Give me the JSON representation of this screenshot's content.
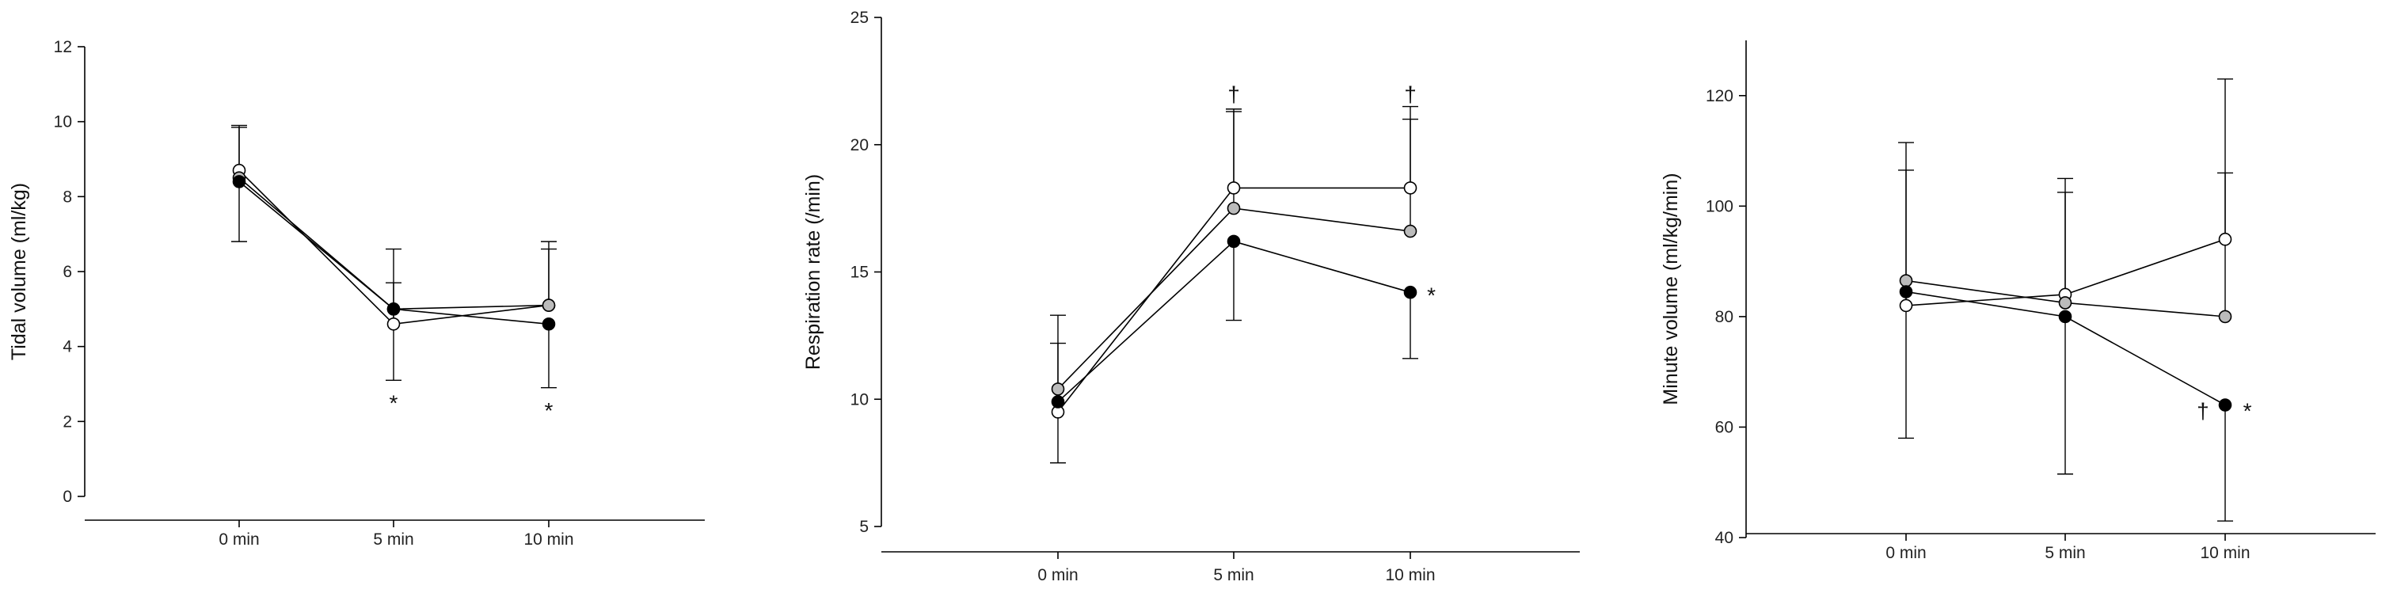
{
  "colors": {
    "open": "#ffffff",
    "gray": "#bbbbbb",
    "filled": "#000000",
    "line": "#000000"
  },
  "chart_data": [
    {
      "type": "line",
      "title": "",
      "xlabel": "",
      "ylabel": "Tidal volume (ml/kg)",
      "categories": [
        "0 min",
        "5 min",
        "10 min"
      ],
      "ylim": [
        0,
        12
      ],
      "yticks": [
        0,
        2,
        4,
        6,
        8,
        10,
        12
      ],
      "series": [
        {
          "marker": "open",
          "values": [
            8.7,
            4.6,
            5.1
          ],
          "err_high": [
            9.9,
            5.7,
            6.6
          ],
          "err_low": [
            null,
            null,
            null
          ]
        },
        {
          "marker": "gray",
          "values": [
            8.5,
            5.0,
            5.1
          ],
          "err_high": [
            9.85,
            6.6,
            6.8
          ],
          "err_low": [
            null,
            null,
            null
          ]
        },
        {
          "marker": "filled",
          "values": [
            8.4,
            5.0,
            4.6
          ],
          "err_high": [
            null,
            null,
            null
          ],
          "err_low": [
            6.8,
            3.1,
            2.9
          ]
        }
      ],
      "annotations": [
        {
          "category": "5 min",
          "y": 2.5,
          "text": "*"
        },
        {
          "category": "10 min",
          "y": 2.3,
          "text": "*"
        }
      ]
    },
    {
      "type": "line",
      "title": "",
      "xlabel": "",
      "ylabel": "Respiration rate (/min)",
      "categories": [
        "0 min",
        "5 min",
        "10 min"
      ],
      "ylim": [
        5,
        25
      ],
      "yticks": [
        5,
        10,
        15,
        20,
        25
      ],
      "series": [
        {
          "marker": "open",
          "values": [
            9.5,
            18.3,
            18.3
          ],
          "err_high": [
            12.2,
            21.4,
            21.5
          ],
          "err_low": [
            null,
            null,
            null
          ]
        },
        {
          "marker": "gray",
          "values": [
            10.4,
            17.5,
            16.6
          ],
          "err_high": [
            13.3,
            21.3,
            21.0
          ],
          "err_low": [
            null,
            null,
            null
          ]
        },
        {
          "marker": "filled",
          "values": [
            9.9,
            16.2,
            14.2
          ],
          "err_high": [
            null,
            null,
            null
          ],
          "err_low": [
            7.5,
            13.1,
            11.6
          ]
        }
      ],
      "annotations": [
        {
          "category": "5 min",
          "y": 22.0,
          "text": "†"
        },
        {
          "category": "10 min",
          "y": 22.0,
          "text": "†"
        },
        {
          "category": "10 min",
          "y": 14.1,
          "dx": 0.12,
          "text": "*"
        }
      ]
    },
    {
      "type": "line",
      "title": "",
      "xlabel": "",
      "ylabel": "Minute volume (ml/kg/min)",
      "categories": [
        "0 min",
        "5 min",
        "10 min"
      ],
      "ylim": [
        40,
        130
      ],
      "yticks": [
        40,
        60,
        80,
        100,
        120
      ],
      "series": [
        {
          "marker": "open",
          "values": [
            82,
            84,
            94
          ],
          "err_high": [
            111.5,
            105,
            123
          ],
          "err_low": [
            null,
            null,
            null
          ]
        },
        {
          "marker": "gray",
          "values": [
            86.5,
            82.5,
            80
          ],
          "err_high": [
            106.5,
            102.5,
            106
          ],
          "err_low": [
            null,
            null,
            null
          ]
        },
        {
          "marker": "filled",
          "values": [
            84.5,
            80,
            64
          ],
          "err_high": [
            null,
            null,
            null
          ],
          "err_low": [
            58,
            51.5,
            43
          ]
        }
      ],
      "annotations": [
        {
          "category": "10 min",
          "y": 63,
          "dx": -0.14,
          "text": "†"
        },
        {
          "category": "10 min",
          "y": 63,
          "dx": 0.14,
          "text": "*"
        }
      ]
    }
  ]
}
